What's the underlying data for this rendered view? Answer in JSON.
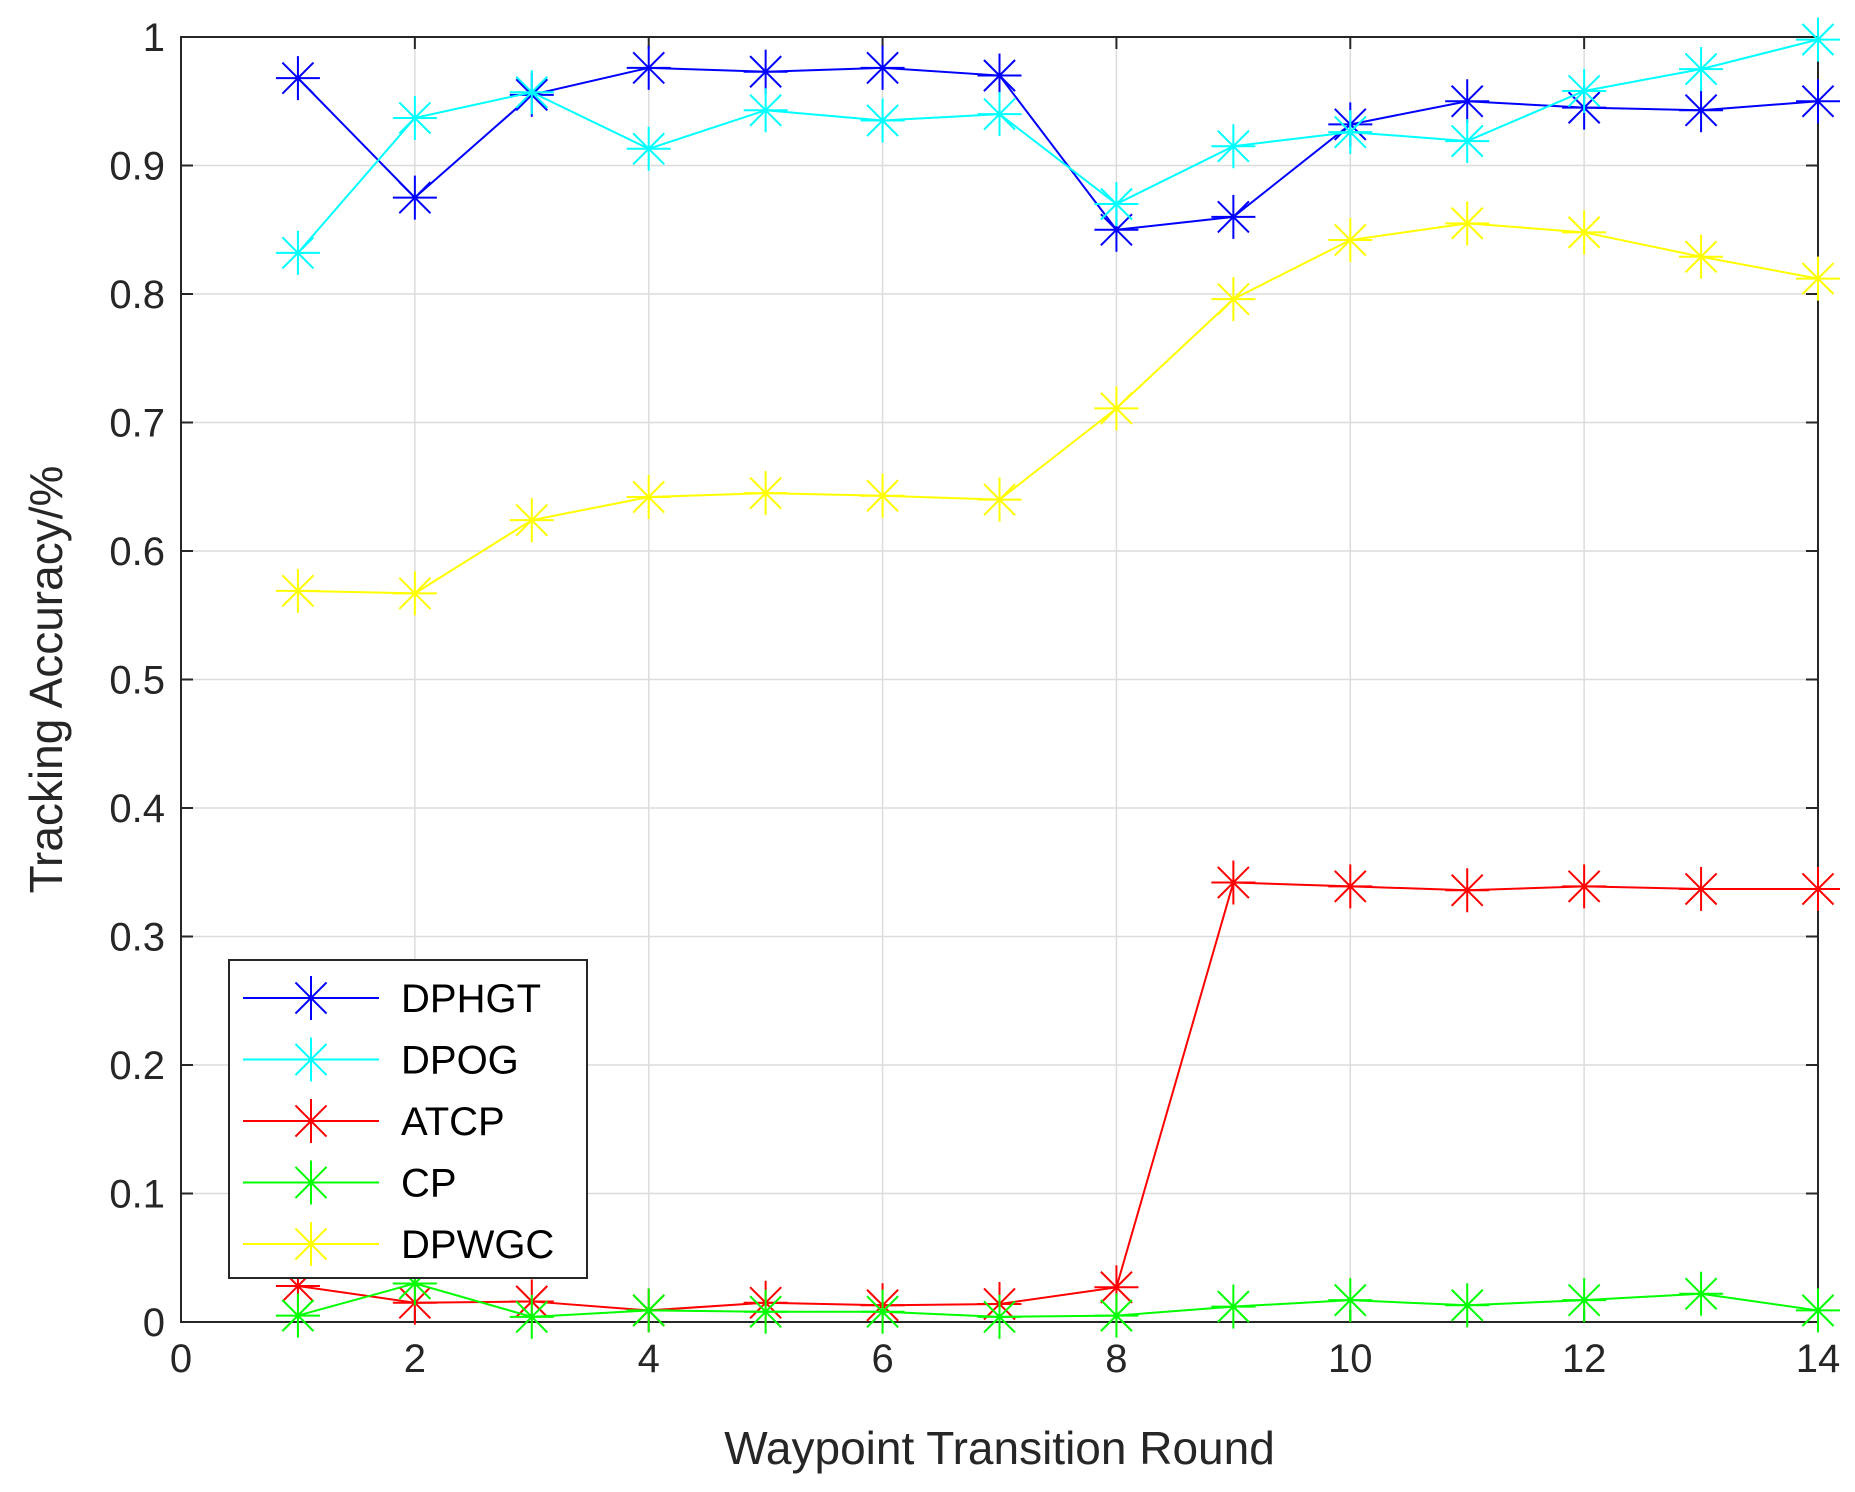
{
  "chart_data": {
    "type": "line",
    "title": "",
    "xlabel": "Waypoint Transition Round",
    "ylabel": "Tracking Accuracy/%",
    "xlim": [
      0,
      14
    ],
    "ylim": [
      0,
      1
    ],
    "xticks": [
      0,
      2,
      4,
      6,
      8,
      10,
      12,
      14
    ],
    "yticks": [
      0,
      0.1,
      0.2,
      0.3,
      0.4,
      0.5,
      0.6,
      0.7,
      0.8,
      0.9,
      1
    ],
    "xtick_labels": [
      "0",
      "2",
      "4",
      "6",
      "8",
      "10",
      "12",
      "14"
    ],
    "ytick_labels": [
      "0",
      "0.1",
      "0.2",
      "0.3",
      "0.4",
      "0.5",
      "0.6",
      "0.7",
      "0.8",
      "0.9",
      "1"
    ],
    "grid": true,
    "legend_position": "bottom-left",
    "marker": "asterisk",
    "x": [
      1,
      2,
      3,
      4,
      5,
      6,
      7,
      8,
      9,
      10,
      11,
      12,
      13,
      14
    ],
    "series": [
      {
        "name": "DPHGT",
        "color": "#0000ff",
        "values": [
          0.968,
          0.875,
          0.955,
          0.976,
          0.973,
          0.976,
          0.97,
          0.85,
          0.86,
          0.932,
          0.95,
          0.945,
          0.943,
          0.95
        ]
      },
      {
        "name": "DPOG",
        "color": "#00ffff",
        "values": [
          0.832,
          0.937,
          0.957,
          0.913,
          0.943,
          0.935,
          0.94,
          0.87,
          0.915,
          0.926,
          0.919,
          0.958,
          0.975,
          0.998
        ]
      },
      {
        "name": "ATCP",
        "color": "#ff0000",
        "values": [
          0.028,
          0.015,
          0.016,
          0.009,
          0.015,
          0.013,
          0.014,
          0.027,
          0.342,
          0.339,
          0.336,
          0.339,
          0.337,
          0.337
        ]
      },
      {
        "name": "CP",
        "color": "#00ff00",
        "values": [
          0.005,
          0.03,
          0.004,
          0.009,
          0.008,
          0.008,
          0.004,
          0.005,
          0.012,
          0.017,
          0.013,
          0.017,
          0.022,
          0.009
        ]
      },
      {
        "name": "DPWGC",
        "color": "#ffff00",
        "values": [
          0.569,
          0.567,
          0.624,
          0.642,
          0.645,
          0.643,
          0.64,
          0.711,
          0.796,
          0.842,
          0.855,
          0.848,
          0.829,
          0.812
        ]
      }
    ]
  }
}
